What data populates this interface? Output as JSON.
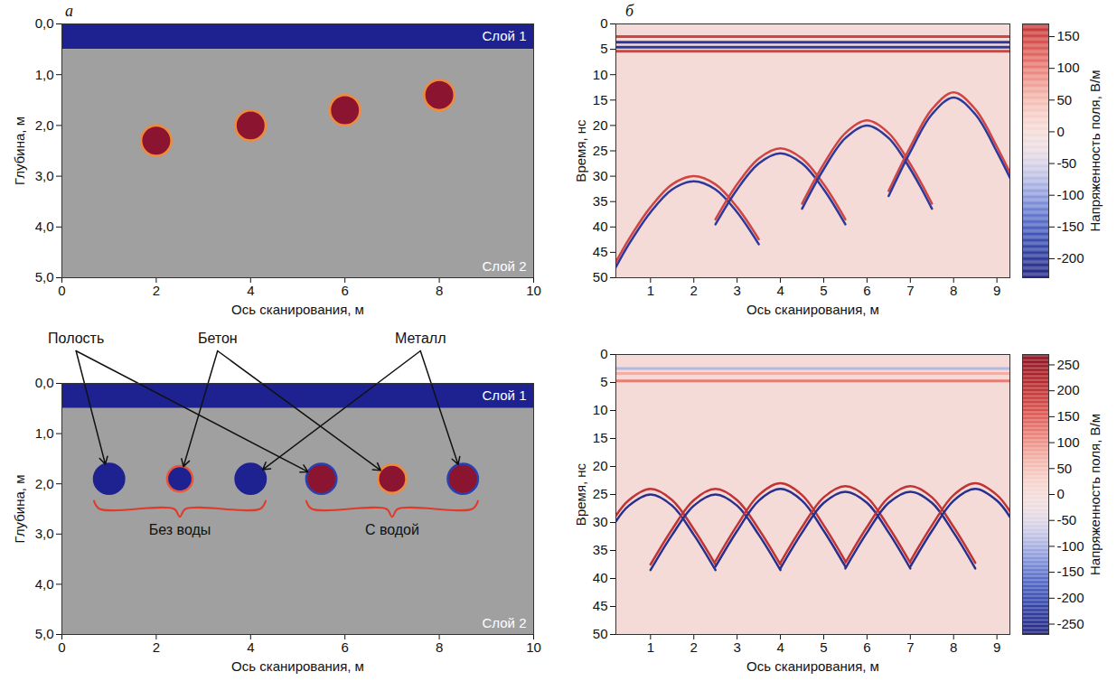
{
  "chart_data": [
    {
      "type": "model",
      "panel_label": "а",
      "xlabel": "Ось сканирования, м",
      "ylabel": "Глубина, м",
      "xlim": [
        0,
        10
      ],
      "ylim": [
        0,
        5
      ],
      "xticks": [
        0,
        2,
        4,
        6,
        8,
        10
      ],
      "yticks": [
        {
          "value": 0,
          "label": "0,0"
        },
        {
          "value": 1,
          "label": "1,0"
        },
        {
          "value": 2,
          "label": "2,0"
        },
        {
          "value": 3,
          "label": "3,0"
        },
        {
          "value": 4,
          "label": "4,0"
        },
        {
          "value": 5,
          "label": "5,0"
        }
      ],
      "layers": [
        {
          "name": "Слой 1",
          "top": 0,
          "bottom": 0.5,
          "color": "#1e2290"
        },
        {
          "name": "Слой 2",
          "top": 0.5,
          "bottom": 5,
          "color": "#a0a0a0"
        }
      ],
      "objects": [
        {
          "x": 2,
          "depth": 2.3,
          "radius": 0.32,
          "colors": [
            "#8b1530",
            "#f08a3c"
          ]
        },
        {
          "x": 4,
          "depth": 2.0,
          "radius": 0.32,
          "colors": [
            "#8b1530",
            "#f08a3c"
          ]
        },
        {
          "x": 6,
          "depth": 1.7,
          "radius": 0.32,
          "colors": [
            "#8b1530",
            "#f08a3c"
          ]
        },
        {
          "x": 8,
          "depth": 1.4,
          "radius": 0.32,
          "colors": [
            "#8b1530",
            "#f08a3c"
          ]
        }
      ]
    },
    {
      "type": "radargram",
      "panel_label": "б",
      "xlabel": "Ось сканирования, м",
      "ylabel": "Время, нс",
      "xlim": [
        0.2,
        9.3
      ],
      "ylim": [
        0,
        50
      ],
      "xticks": [
        1,
        2,
        3,
        4,
        5,
        6,
        7,
        8,
        9
      ],
      "yticks": [
        0,
        5,
        10,
        15,
        20,
        25,
        30,
        35,
        40,
        45,
        50
      ],
      "colorbar": {
        "label": "Напряженность поля, В/м",
        "lim": [
          -230,
          170
        ],
        "ticks": [
          150,
          100,
          50,
          0,
          -50,
          -100,
          -150,
          -200
        ]
      },
      "background_amplitude": 0,
      "direct_wave": [
        {
          "t": 2.5,
          "amplitude": 150
        },
        {
          "t": 3.6,
          "amplitude": -200
        },
        {
          "t": 4.6,
          "amplitude": -200
        },
        {
          "t": 5.4,
          "amplitude": 150
        }
      ],
      "reflections": [
        {
          "x": [
            0.2,
            0.5,
            1,
            1.5,
            2,
            2.5,
            3,
            3.5
          ],
          "t": [
            46.9,
            42.4,
            36.1,
            31.6,
            30,
            31.6,
            36.1,
            42.4
          ],
          "amplitude": 150
        },
        {
          "x": [
            0.2,
            0.5,
            1,
            1.5,
            2,
            2.5,
            3,
            3.5
          ],
          "t": [
            47.9,
            43.4,
            37.1,
            32.6,
            31,
            32.6,
            37.1,
            43.4
          ],
          "amplitude": -200
        },
        {
          "x": [
            2.5,
            3,
            3.5,
            4,
            4.5,
            5,
            5.5
          ],
          "t": [
            38.5,
            31.6,
            26.5,
            24.5,
            26.5,
            31.6,
            38.5
          ],
          "amplitude": 150
        },
        {
          "x": [
            2.5,
            3,
            3.5,
            4,
            4.5,
            5,
            5.5
          ],
          "t": [
            39.5,
            32.6,
            27.5,
            25.5,
            27.5,
            32.6,
            39.5
          ],
          "amplitude": -200
        },
        {
          "x": [
            4.5,
            5,
            5.5,
            6,
            6.5,
            7,
            7.5
          ],
          "t": [
            35.4,
            27.6,
            21.5,
            19,
            21.5,
            27.6,
            35.4
          ],
          "amplitude": 150
        },
        {
          "x": [
            4.5,
            5,
            5.5,
            6,
            6.5,
            7,
            7.5
          ],
          "t": [
            36.4,
            28.6,
            22.5,
            20,
            22.5,
            28.6,
            36.4
          ],
          "amplitude": -200
        },
        {
          "x": [
            6.5,
            7,
            7.5,
            8,
            8.5,
            9,
            9.3
          ],
          "t": [
            32.9,
            24.2,
            16.8,
            13.5,
            16.8,
            24.2,
            29.3
          ],
          "amplitude": 150
        },
        {
          "x": [
            6.5,
            7,
            7.5,
            8,
            8.5,
            9,
            9.3
          ],
          "t": [
            33.9,
            25.2,
            17.8,
            14.5,
            17.8,
            25.2,
            30.3
          ],
          "amplitude": -200
        }
      ]
    },
    {
      "type": "model",
      "xlabel": "Ось сканирования, м",
      "ylabel": "Глубина, м",
      "xlim": [
        0,
        10
      ],
      "ylim": [
        0,
        5
      ],
      "xticks": [
        0,
        2,
        4,
        6,
        8,
        10
      ],
      "yticks": [
        {
          "value": 0,
          "label": "0,0"
        },
        {
          "value": 1,
          "label": "1,0"
        },
        {
          "value": 2,
          "label": "2,0"
        },
        {
          "value": 3,
          "label": "3,0"
        },
        {
          "value": 4,
          "label": "4,0"
        },
        {
          "value": 5,
          "label": "5,0"
        }
      ],
      "layers": [
        {
          "name": "Слой 1",
          "top": 0,
          "bottom": 0.5,
          "color": "#1e2290"
        },
        {
          "name": "Слой 2",
          "top": 0.5,
          "bottom": 5,
          "color": "#a0a0a0"
        }
      ],
      "objects": [
        {
          "x": 1,
          "depth": 1.9,
          "radius": 0.32,
          "colors": [
            "#1e2290",
            "#1e2290"
          ]
        },
        {
          "x": 2.5,
          "depth": 1.9,
          "radius": 0.27,
          "colors": [
            "#1e2290",
            "#e8553a"
          ]
        },
        {
          "x": 4,
          "depth": 1.9,
          "radius": 0.32,
          "colors": [
            "#1e2290",
            "#1e2290"
          ]
        },
        {
          "x": 5.5,
          "depth": 1.9,
          "radius": 0.32,
          "colors": [
            "#8b1530",
            "#2a3fb0"
          ]
        },
        {
          "x": 7,
          "depth": 1.9,
          "radius": 0.3,
          "colors": [
            "#8b1530",
            "#f08a3c"
          ]
        },
        {
          "x": 8.5,
          "depth": 1.9,
          "radius": 0.32,
          "colors": [
            "#8b1530",
            "#2a3fb0"
          ]
        }
      ],
      "annotations": [
        {
          "text": "Полость",
          "targets": [
            0,
            3
          ]
        },
        {
          "text": "Бетон",
          "targets": [
            1,
            4
          ]
        },
        {
          "text": "Металл",
          "targets": [
            2,
            5
          ]
        }
      ],
      "groups": [
        {
          "text": "Без воды",
          "members": [
            0,
            1,
            2
          ],
          "color": "#e03a2a"
        },
        {
          "text": "С водой",
          "members": [
            3,
            4,
            5
          ],
          "color": "#e03a2a"
        }
      ]
    },
    {
      "type": "radargram",
      "xlabel": "Ось сканирования, м",
      "ylabel": "Время, нс",
      "xlim": [
        0.2,
        9.3
      ],
      "ylim": [
        0,
        50
      ],
      "xticks": [
        1,
        2,
        3,
        4,
        5,
        6,
        7,
        8,
        9
      ],
      "yticks": [
        0,
        5,
        10,
        15,
        20,
        25,
        30,
        35,
        40,
        45,
        50
      ],
      "colorbar": {
        "label": "Напряженность поля, В/м",
        "lim": [
          -270,
          270
        ],
        "ticks": [
          250,
          200,
          150,
          100,
          50,
          0,
          -50,
          -100,
          -150,
          -200,
          -250
        ]
      },
      "background_amplitude": 0,
      "direct_wave": [
        {
          "t": 2.5,
          "amplitude": -90
        },
        {
          "t": 3.4,
          "amplitude": 70
        },
        {
          "t": 4.7,
          "amplitude": 120
        }
      ],
      "reflections": [
        {
          "x": [
            0.2,
            0.5,
            1,
            1.5,
            2,
            2.5
          ],
          "t": [
            28.8,
            26.0,
            24,
            26.0,
            31.2,
            37.5
          ],
          "amplitude": 200
        },
        {
          "x": [
            0.2,
            0.5,
            1,
            1.5,
            2,
            2.5
          ],
          "t": [
            29.8,
            27.0,
            25,
            27.0,
            32.2,
            38.5
          ],
          "amplitude": -250
        },
        {
          "x": [
            1,
            1.5,
            2,
            2.5,
            3,
            3.5,
            4
          ],
          "t": [
            37.5,
            31.2,
            26.0,
            24,
            26.0,
            31.2,
            37.5
          ],
          "amplitude": 200
        },
        {
          "x": [
            1,
            1.5,
            2,
            2.5,
            3,
            3.5,
            4
          ],
          "t": [
            38.5,
            32.2,
            27.0,
            25,
            27.0,
            32.2,
            38.5
          ],
          "amplitude": -250
        },
        {
          "x": [
            2.5,
            3,
            3.5,
            4,
            4.5,
            5,
            5.5
          ],
          "t": [
            36.9,
            30.5,
            25.1,
            23,
            25.1,
            30.5,
            36.9
          ],
          "amplitude": 200
        },
        {
          "x": [
            2.5,
            3,
            3.5,
            4,
            4.5,
            5,
            5.5
          ],
          "t": [
            37.9,
            31.5,
            26.1,
            24,
            26.1,
            31.5,
            37.9
          ],
          "amplitude": -250
        },
        {
          "x": [
            4,
            4.5,
            5,
            5.5,
            6,
            6.5,
            7
          ],
          "t": [
            37.2,
            30.8,
            25.5,
            23.5,
            25.5,
            30.8,
            37.2
          ],
          "amplitude": 200
        },
        {
          "x": [
            4,
            4.5,
            5,
            5.5,
            6,
            6.5,
            7
          ],
          "t": [
            38.2,
            31.8,
            26.5,
            24.5,
            26.5,
            31.8,
            38.2
          ],
          "amplitude": -250
        },
        {
          "x": [
            5.5,
            6,
            6.5,
            7,
            7.5,
            8,
            8.5
          ],
          "t": [
            37.2,
            30.8,
            25.5,
            23.5,
            25.5,
            30.8,
            37.2
          ],
          "amplitude": 200
        },
        {
          "x": [
            5.5,
            6,
            6.5,
            7,
            7.5,
            8,
            8.5
          ],
          "t": [
            38.2,
            31.8,
            26.5,
            24.5,
            26.5,
            31.8,
            38.2
          ],
          "amplitude": -250
        },
        {
          "x": [
            7,
            7.5,
            8,
            8.5,
            9,
            9.3
          ],
          "t": [
            36.9,
            30.5,
            25.1,
            23,
            25.1,
            28.0
          ],
          "amplitude": 200
        },
        {
          "x": [
            7,
            7.5,
            8,
            8.5,
            9,
            9.3
          ],
          "t": [
            37.9,
            31.5,
            26.1,
            24,
            26.1,
            29.0
          ],
          "amplitude": -250
        }
      ]
    }
  ]
}
